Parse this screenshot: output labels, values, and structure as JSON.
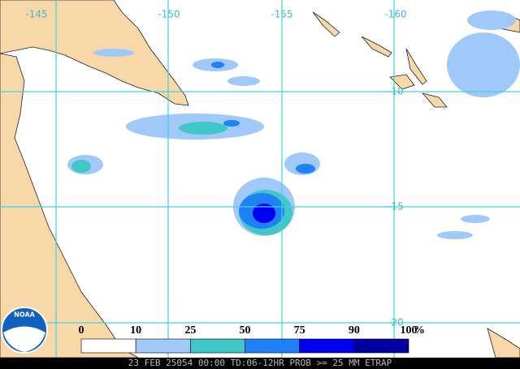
{
  "map": {
    "lon_labels": [
      "-145",
      "-150",
      "-155",
      "-160"
    ],
    "lat_labels": [
      "-10",
      "-15",
      "-20"
    ]
  },
  "legend": {
    "ticks": [
      0,
      10,
      25,
      50,
      75,
      90,
      100
    ],
    "unit": "%",
    "colors": [
      "#ffffff",
      "#a0c8f8",
      "#40c8c8",
      "#2080f8",
      "#0000f0",
      "#0000a0"
    ]
  },
  "logo": "NOAA",
  "footer": "23 FEB 25054 00:00 TD:06-12HR PROB >= 25 MM ETRAP"
}
